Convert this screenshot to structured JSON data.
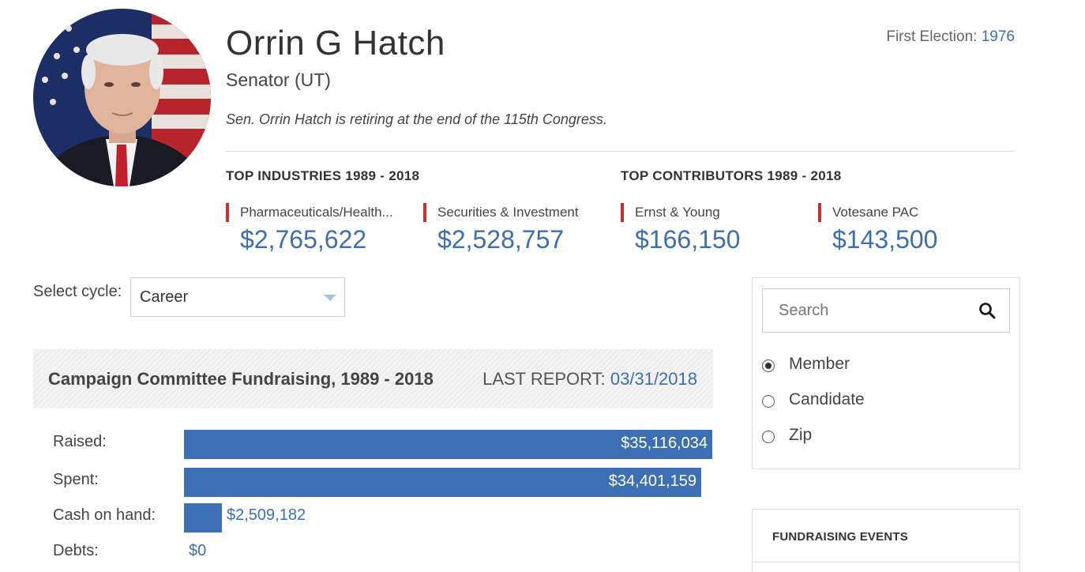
{
  "profile": {
    "name": "Orrin G Hatch",
    "office": "Senator (UT)",
    "note": "Sen. Orrin Hatch is retiring at the end of the 115th Congress.",
    "first_election_label": "First Election:",
    "first_election_year": "1976",
    "avatar_icon": "portrait-photo"
  },
  "top_industries": {
    "heading": "TOP INDUSTRIES 1989 - 2018",
    "items": [
      {
        "label": "Pharmaceuticals/Health...",
        "amount": "$2,765,622"
      },
      {
        "label": "Securities & Investment",
        "amount": "$2,528,757"
      }
    ]
  },
  "top_contributors": {
    "heading": "TOP CONTRIBUTORS 1989 - 2018",
    "items": [
      {
        "label": "Ernst & Young",
        "amount": "$166,150"
      },
      {
        "label": "Votesane PAC",
        "amount": "$143,500"
      }
    ]
  },
  "cycle": {
    "label": "Select cycle:",
    "selected": "Career"
  },
  "fundraising": {
    "title": "Campaign Committee Fundraising, 1989 - 2018",
    "last_report_label": "LAST REPORT:",
    "last_report_date": "03/31/2018",
    "rows": [
      {
        "label": "Raised:",
        "value": "$35,116,034",
        "amount": 35116034
      },
      {
        "label": "Spent:",
        "value": "$34,401,159",
        "amount": 34401159
      },
      {
        "label": "Cash on hand:",
        "value": "$2,509,182",
        "amount": 2509182
      },
      {
        "label": "Debts:",
        "value": "$0",
        "amount": 0
      }
    ],
    "bar_color": "#3d6fb4"
  },
  "search": {
    "placeholder": "Search",
    "options": [
      {
        "label": "Member",
        "checked": true
      },
      {
        "label": "Candidate",
        "checked": false
      },
      {
        "label": "Zip",
        "checked": false
      }
    ]
  },
  "events": {
    "title": "FUNDRAISING EVENTS"
  },
  "colors": {
    "accent": "#3c6fb0",
    "marker": "#c9302c"
  }
}
